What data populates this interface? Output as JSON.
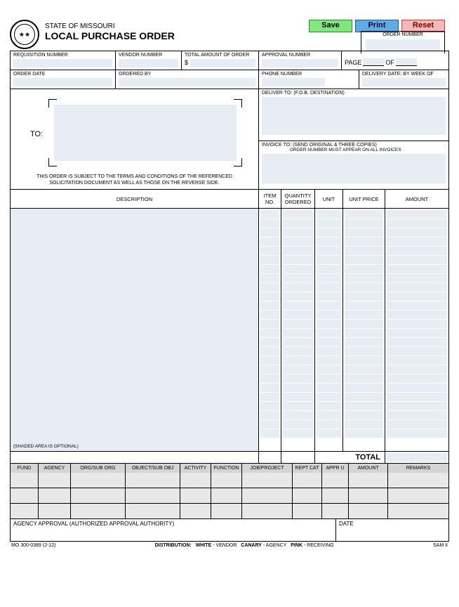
{
  "buttons": {
    "save": "Save",
    "print": "Print",
    "reset": "Reset"
  },
  "header": {
    "state": "STATE OF MISSOURI",
    "title": "LOCAL PURCHASE ORDER"
  },
  "order_number": {
    "label": "ORDER NUMBER"
  },
  "row1": {
    "req": "REQUISITION NUMBER",
    "vendor": "VENDOR NUMBER",
    "total": "TOTAL AMOUNT OF ORDER",
    "dollar": "$",
    "approval": "APPROVAL NUMBER",
    "page": "PAGE",
    "of": "OF"
  },
  "row2": {
    "order_date": "ORDER DATE",
    "ordered_by": "ORDERED BY",
    "phone": "PHONE NUMBER",
    "delivery": "DELIVERY DATE: BY WEEK OF"
  },
  "to": {
    "label": "TO:",
    "note1": "THIS ORDER IS SUBJECT TO THE TERMS AND CONDITIONS OF THE REFERENCED",
    "note2": "SOLICITATION DOCUMENT AS WELL AS THOSE ON THE REVERSE SIDE."
  },
  "deliver": {
    "label": "DELIVER TO: (F.O.B. DESTINATION)"
  },
  "invoice": {
    "label": "INVOICE TO:   (SEND ORIGINAL & THREE COPIES)",
    "sub": "ORDER NUMBER MUST APPEAR ON ALL INVOICES"
  },
  "items_header": {
    "desc": "DESCRIPTION",
    "item_no": "ITEM NO.",
    "qty": "QUANTITY ORDERED",
    "unit": "UNIT",
    "unit_price": "UNIT PRICE",
    "amount": "AMOUNT"
  },
  "shaded_note": "(SHADED AREA IS OPTIONAL)",
  "total": "TOTAL",
  "coding": {
    "fund": "FUND",
    "agency": "AGENCY",
    "org": "ORG/SUB ORG",
    "object": "OBJECT/SUB OBJ",
    "activity": "ACTIVITY",
    "function": "FUNCTION",
    "job": "JOB/PROJECT",
    "reptcat": "REPT CAT",
    "appru": "APPR U",
    "amount": "AMOUNT",
    "remarks": "REMARKS"
  },
  "approval": {
    "left": "AGENCY APPROVAL (AUTHORIZED APPROVAL AUTHORITY)",
    "right": "DATE"
  },
  "footer": {
    "form": "MO 300-0389 (2-12)",
    "dist_label": "DISTRIBUTION:",
    "white": "WHITE",
    "white_to": " - VENDOR",
    "canary": "CANARY",
    "canary_to": " - AGENCY",
    "pink": "PINK",
    "pink_to": " - RECEIVING",
    "sam": "SAM II"
  },
  "widths": {
    "desc": 354,
    "item": 32,
    "qty": 48,
    "unit": 40,
    "price": 60,
    "amount": 90
  }
}
